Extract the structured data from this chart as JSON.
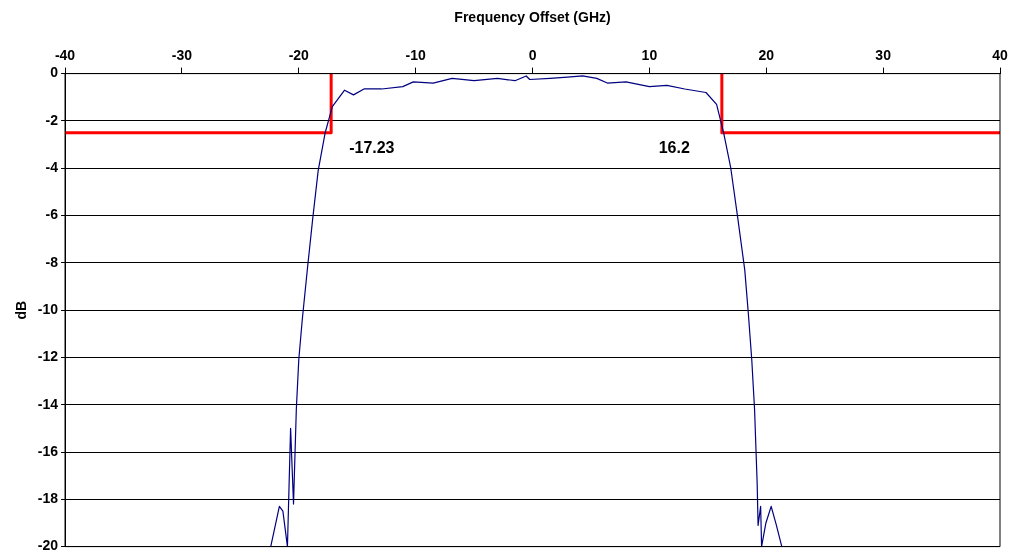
{
  "chart_data": {
    "type": "line",
    "xlabel": "Frequency Offset (GHz)",
    "ylabel": "dB",
    "xlim": [
      -40,
      40
    ],
    "xticks": [
      -40,
      -30,
      -20,
      -10,
      0,
      10,
      20,
      30,
      40
    ],
    "ylim": [
      -20,
      0
    ],
    "yticks": [
      -20,
      -18,
      -16,
      -14,
      -12,
      -10,
      -8,
      -6,
      -4,
      -2,
      0
    ],
    "grid": "y",
    "legend": false,
    "marker": "none",
    "line_style": "solid",
    "series": [
      {
        "color": "#000080",
        "x": [
          -22.4,
          -21.66,
          -21.36,
          -20.97,
          -20.7,
          -20.45,
          -20.21,
          -20.0,
          -19.7,
          -19.25,
          -18.8,
          -18.34,
          -17.74,
          -17.13,
          -16.08,
          -15.32,
          -14.42,
          -12.91,
          -11.1,
          -10.2,
          -8.5,
          -6.88,
          -5,
          -3,
          -1.5,
          -0.54,
          -0.24,
          1.5,
          3,
          4.28,
          5.5,
          6.4,
          8,
          10.0,
          11.5,
          13.03,
          14.84,
          15.75,
          16.35,
          16.95,
          17.56,
          18.16,
          18.46,
          18.76,
          19.0,
          19.22,
          19.3,
          19.52,
          19.6,
          19.97,
          20.42,
          20.87,
          21.33
        ],
        "values": [
          -20,
          -18.3,
          -18.5,
          -20,
          -15,
          -18.2,
          -14.2,
          -12.1,
          -10.4,
          -8.2,
          -6.1,
          -4.1,
          -2.5,
          -1.4,
          -0.7,
          -0.9,
          -0.65,
          -0.65,
          -0.55,
          -0.35,
          -0.4,
          -0.2,
          -0.3,
          -0.2,
          -0.3,
          -0.1,
          -0.25,
          -0.2,
          -0.15,
          -0.1,
          -0.2,
          -0.4,
          -0.35,
          -0.55,
          -0.5,
          -0.65,
          -0.8,
          -1.3,
          -2.5,
          -3.95,
          -6.1,
          -8.3,
          -10.1,
          -12.1,
          -14.2,
          -17.3,
          -19.1,
          -18.3,
          -20,
          -19,
          -18.3,
          -19.1,
          -20
        ]
      },
      {
        "color": "#ff0000",
        "x": [
          -40,
          -17.23,
          -17.23,
          null,
          16.2,
          16.2,
          40
        ],
        "values": [
          -2.5,
          -2.5,
          0,
          null,
          0,
          -2.5,
          -2.5
        ]
      }
    ],
    "annotations": [
      {
        "text": "-17.23",
        "x": -17.23,
        "y": -2.5
      },
      {
        "text": "16.2",
        "x": 16.2,
        "y": -2.5
      }
    ]
  }
}
